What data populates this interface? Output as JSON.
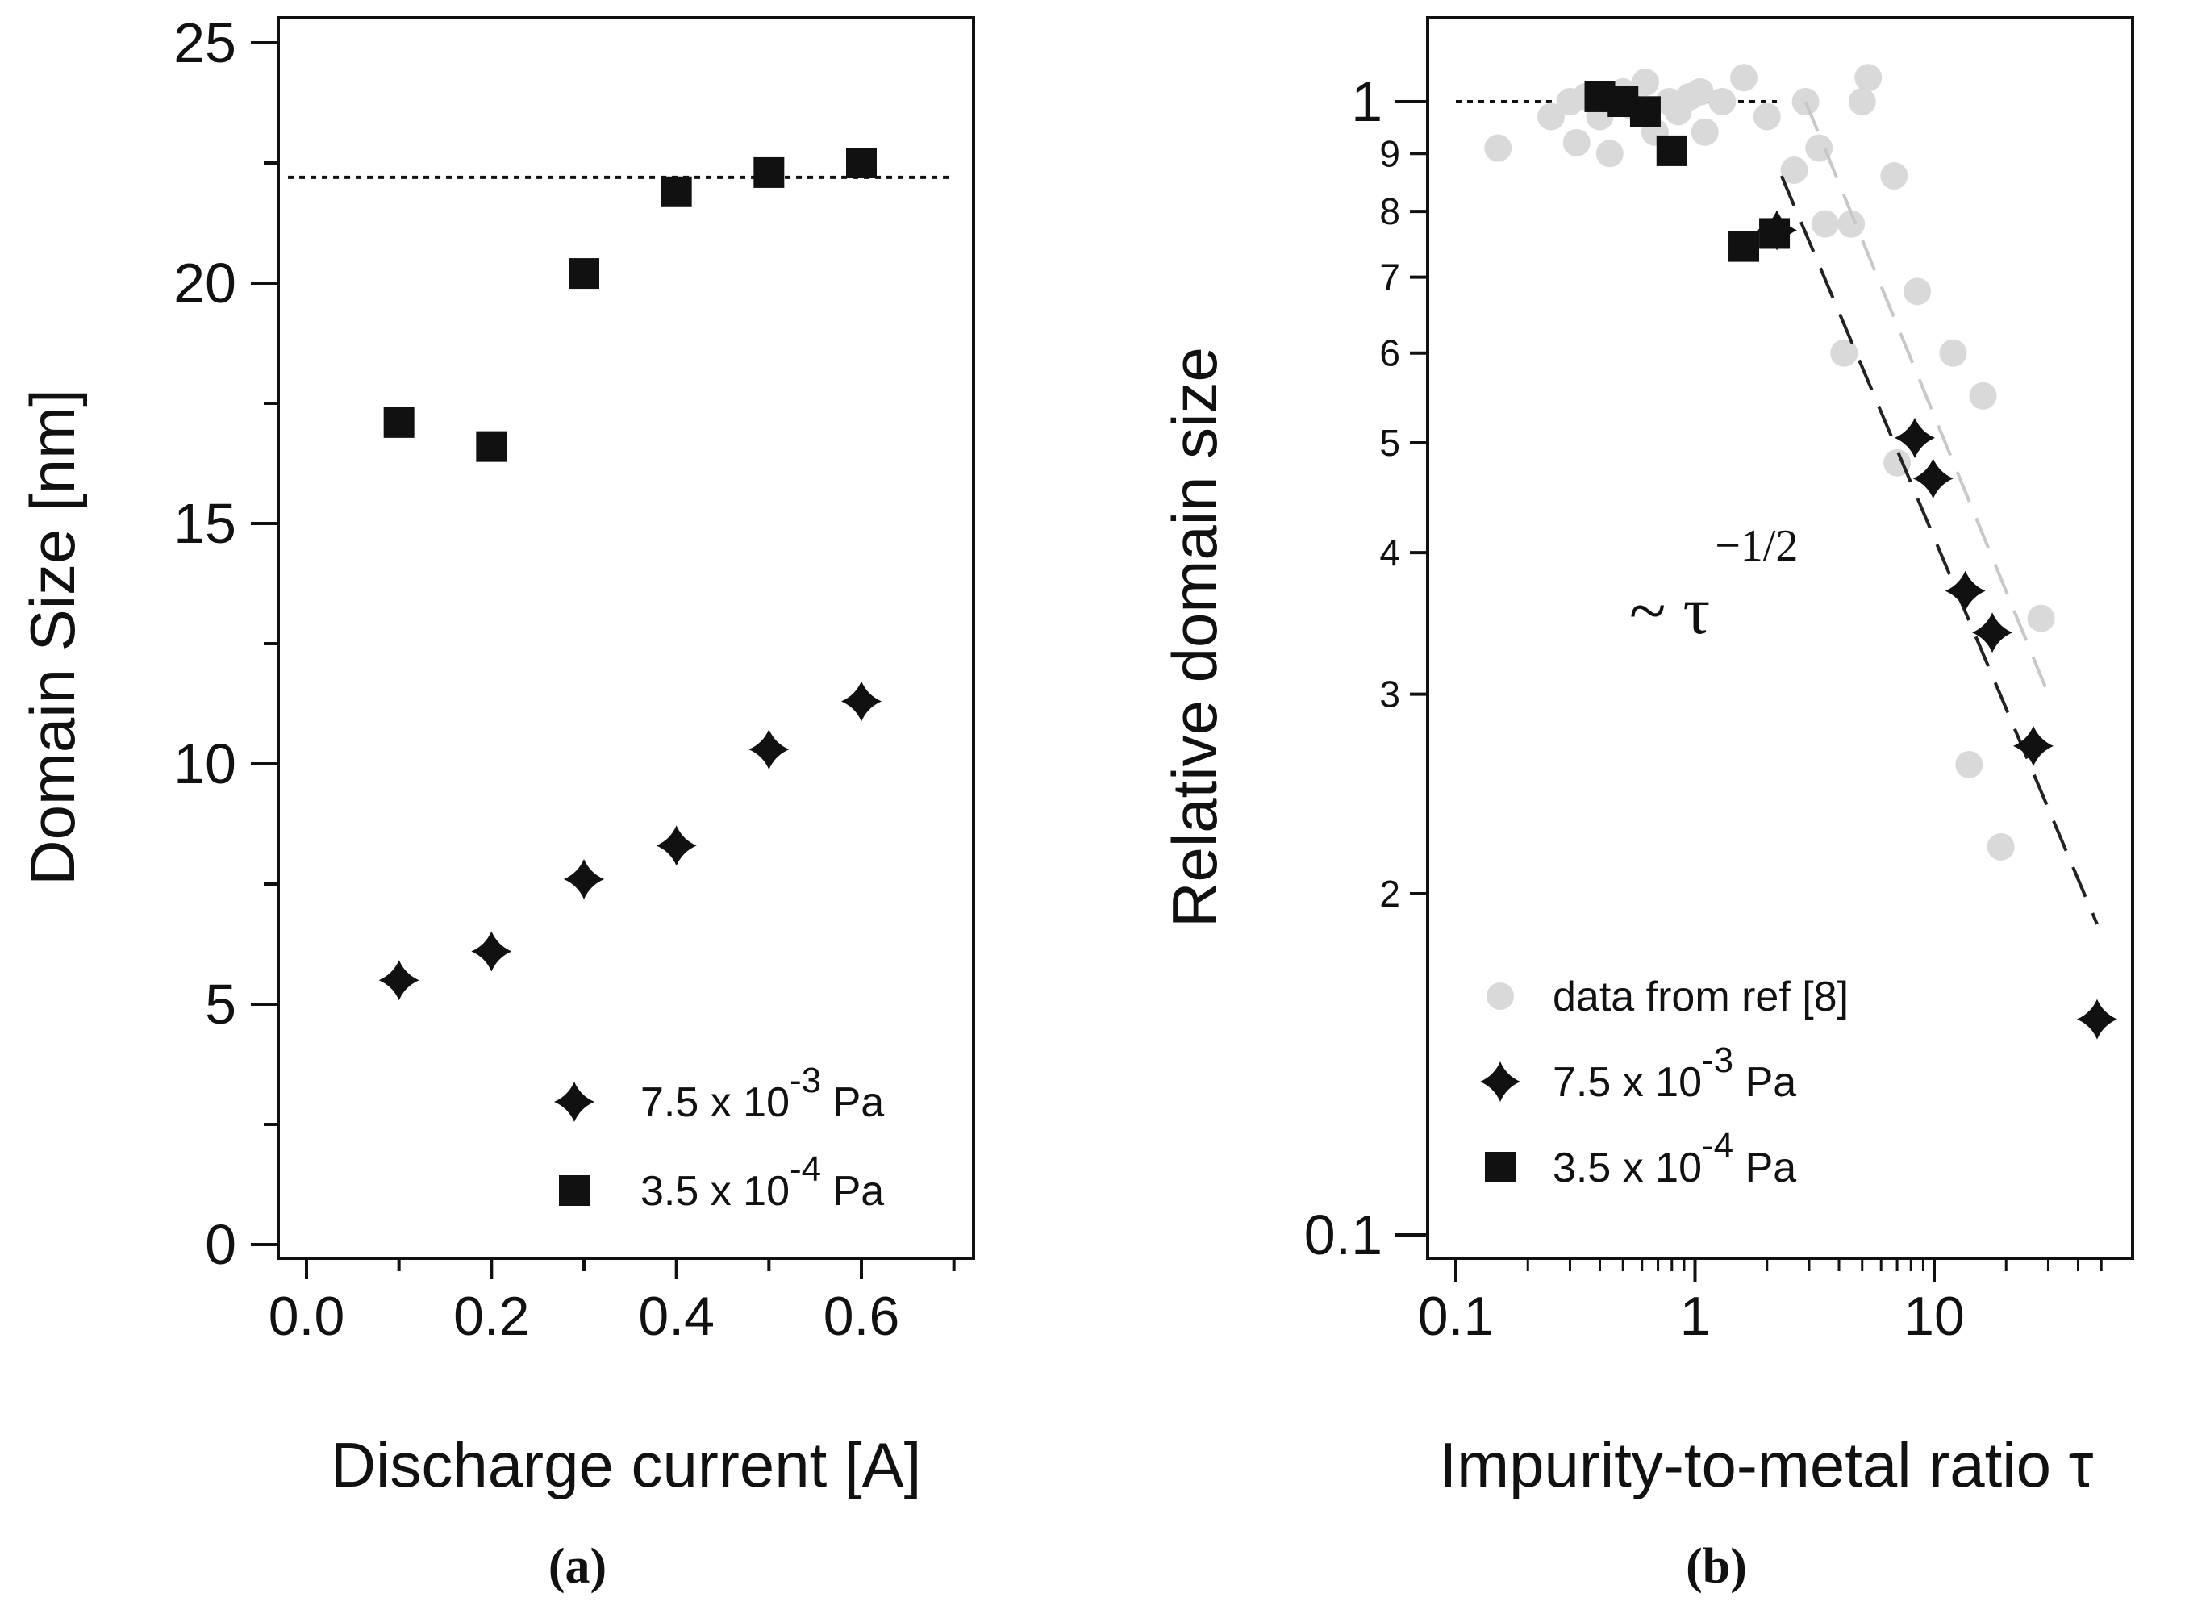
{
  "chart_data": [
    {
      "type": "scatter",
      "panel": "a",
      "caption": "(a)",
      "xlabel": "Discharge current [A]",
      "ylabel": "Domain Size [nm]",
      "xlim": [
        -0.05,
        0.72
      ],
      "ylim": [
        -0.5,
        25.5
      ],
      "xticks": [
        0.0,
        0.2,
        0.4,
        0.6
      ],
      "xtick_labels": [
        "0.0",
        "0.2",
        "0.4",
        "0.6"
      ],
      "xminor": [
        0.1,
        0.3,
        0.5,
        0.7
      ],
      "yticks": [
        0,
        5,
        10,
        15,
        20,
        25
      ],
      "ytick_labels": [
        "0",
        "5",
        "10",
        "15",
        "20",
        "25"
      ],
      "reference_line": {
        "y": 22.2,
        "x_range": [
          -0.02,
          0.7
        ],
        "style": "dotted"
      },
      "series": [
        {
          "name": "7.5 x 10^-3 Pa",
          "marker": "star4",
          "points": [
            [
              0.1,
              5.5
            ],
            [
              0.2,
              6.1
            ],
            [
              0.3,
              7.6
            ],
            [
              0.4,
              8.3
            ],
            [
              0.5,
              10.3
            ],
            [
              0.6,
              11.3
            ]
          ]
        },
        {
          "name": "3.5 x 10^-4 Pa",
          "marker": "square",
          "points": [
            [
              0.1,
              17.1
            ],
            [
              0.2,
              16.6
            ],
            [
              0.3,
              20.2
            ],
            [
              0.4,
              21.9
            ],
            [
              0.5,
              22.3
            ],
            [
              0.6,
              22.5
            ]
          ]
        }
      ],
      "legend": [
        {
          "marker": "star4",
          "base": "7.5 x 10",
          "exp": "-3",
          "unit": " Pa"
        },
        {
          "marker": "square",
          "base": "3.5 x 10",
          "exp": "-4",
          "unit": " Pa"
        }
      ],
      "legend_position": "bottom-right"
    },
    {
      "type": "scatter",
      "panel": "b",
      "caption": "(b)",
      "xscale": "log",
      "yscale": "log",
      "xlabel": "Impurity-to-metal ratio τ",
      "ylabel": "Relative domain size",
      "xlim": [
        0.08,
        60
      ],
      "ylim": [
        0.09,
        1.23
      ],
      "xticks": [
        0.1,
        1,
        10
      ],
      "xtick_labels": [
        "0.1",
        "1",
        "10"
      ],
      "ymajor": [
        0.1,
        1
      ],
      "ymajor_labels": [
        "0.1",
        "1"
      ],
      "yminor": [
        0.2,
        0.3,
        0.4,
        0.5,
        0.6,
        0.7,
        0.8,
        0.9
      ],
      "yminor_labels": [
        "2",
        "3",
        "4",
        "5",
        "6",
        "7",
        "8",
        "9"
      ],
      "annotation": {
        "base": "~ τ",
        "exp": "−1/2"
      },
      "reference_line": {
        "y": 1.0,
        "x_range": [
          0.1,
          2.2
        ],
        "style": "dotted"
      },
      "fit_lines": [
        {
          "name": "fit black",
          "color": "#222222",
          "points": [
            [
              2.3,
              0.86
            ],
            [
              48,
              0.188
            ]
          ]
        },
        {
          "name": "fit gray",
          "color": "#c8c8c8",
          "points": [
            [
              2.9,
              1.0
            ],
            [
              30,
              0.3
            ]
          ]
        }
      ],
      "series": [
        {
          "name": "data from ref [8]",
          "marker": "circle",
          "color": "#d9d9d9",
          "points": [
            [
              0.15,
              0.91
            ],
            [
              0.25,
              0.97
            ],
            [
              0.3,
              1.0
            ],
            [
              0.32,
              0.92
            ],
            [
              0.35,
              1.01
            ],
            [
              0.4,
              0.97
            ],
            [
              0.44,
              0.9
            ],
            [
              0.5,
              1.02
            ],
            [
              0.55,
              0.99
            ],
            [
              0.62,
              1.04
            ],
            [
              0.68,
              0.94
            ],
            [
              0.78,
              1.0
            ],
            [
              0.85,
              0.98
            ],
            [
              0.95,
              1.01
            ],
            [
              1.05,
              1.02
            ],
            [
              1.1,
              0.94
            ],
            [
              1.3,
              1.0
            ],
            [
              1.6,
              1.05
            ],
            [
              2.0,
              0.97
            ],
            [
              2.6,
              0.87
            ],
            [
              2.9,
              1.0
            ],
            [
              3.3,
              0.91
            ],
            [
              3.5,
              0.78
            ],
            [
              4.2,
              0.6
            ],
            [
              4.5,
              0.78
            ],
            [
              5.0,
              1.0
            ],
            [
              5.3,
              1.05
            ],
            [
              6.8,
              0.86
            ],
            [
              7.0,
              0.48
            ],
            [
              8.5,
              0.68
            ],
            [
              12,
              0.6
            ],
            [
              14,
              0.26
            ],
            [
              16,
              0.55
            ],
            [
              19,
              0.22
            ],
            [
              28,
              0.35
            ]
          ]
        },
        {
          "name": "7.5 x 10^-3 Pa",
          "marker": "star4",
          "color": "#111111",
          "points": [
            [
              2.2,
              0.77
            ],
            [
              8.3,
              0.505
            ],
            [
              9.9,
              0.465
            ],
            [
              13.5,
              0.37
            ],
            [
              17.5,
              0.34
            ],
            [
              26,
              0.27
            ],
            [
              48,
              0.155
            ]
          ]
        },
        {
          "name": "3.5 x 10^-4 Pa",
          "marker": "square",
          "color": "#111111",
          "points": [
            [
              0.4,
              1.01
            ],
            [
              0.5,
              1.0
            ],
            [
              0.62,
              0.98
            ],
            [
              0.8,
              0.905
            ],
            [
              1.6,
              0.745
            ],
            [
              2.15,
              0.765
            ]
          ]
        }
      ],
      "legend": [
        {
          "marker": "circle",
          "label": "data from ref [8]"
        },
        {
          "marker": "star4",
          "base": "7.5 x 10",
          "exp": "-3",
          "unit": " Pa"
        },
        {
          "marker": "square",
          "base": "3.5 x 10",
          "exp": "-4",
          "unit": " Pa"
        }
      ],
      "legend_position": "bottom-left"
    }
  ]
}
